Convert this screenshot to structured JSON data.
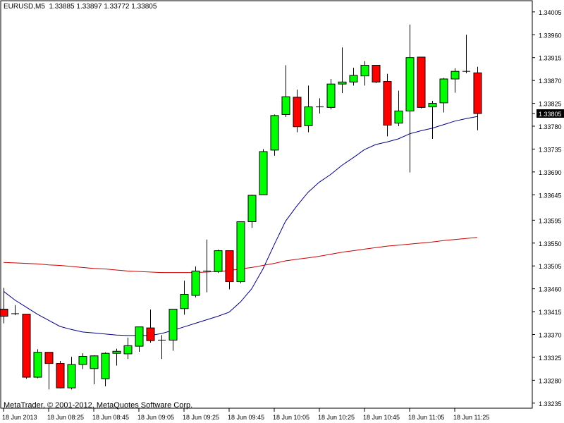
{
  "header": {
    "symbol": "EURUSD,M5",
    "open": "1.33885",
    "high": "1.33897",
    "low": "1.33772",
    "close": "1.33805"
  },
  "copyright": "MetaTrader, © 2001-2012, MetaQuotes Software Corp.",
  "colors": {
    "background": "#ffffff",
    "grid": "#000000",
    "bull": "#00ff00",
    "bear": "#ff0000",
    "wick": "#000000",
    "ma_fast": "#000080",
    "ma_slow": "#cc0000",
    "price_tag_bg": "#000000",
    "price_tag_fg": "#ffffff"
  },
  "chart_data": {
    "type": "candlestick",
    "title": "EURUSD,M5",
    "grid": false,
    "ylim": [
      1.33225,
      1.34027
    ],
    "y_ticks": [
      "1.34005",
      "1.33960",
      "1.33915",
      "1.33870",
      "1.33825",
      "1.33780",
      "1.33735",
      "1.33690",
      "1.33645",
      "1.33595",
      "1.33550",
      "1.33505",
      "1.33460",
      "1.33415",
      "1.33370",
      "1.33325",
      "1.33280",
      "1.33235"
    ],
    "current_price": "1.33805",
    "x_ticks": [
      {
        "label": "18 Jun 2013",
        "index": 0
      },
      {
        "label": "18 Jun 08:25",
        "index": 4
      },
      {
        "label": "18 Jun 08:45",
        "index": 8
      },
      {
        "label": "18 Jun 09:05",
        "index": 12
      },
      {
        "label": "18 Jun 09:25",
        "index": 16
      },
      {
        "label": "18 Jun 09:45",
        "index": 20
      },
      {
        "label": "18 Jun 10:05",
        "index": 24
      },
      {
        "label": "18 Jun 10:25",
        "index": 28
      },
      {
        "label": "18 Jun 10:45",
        "index": 32
      },
      {
        "label": "18 Jun 11:05",
        "index": 36
      },
      {
        "label": "18 Jun 11:25",
        "index": 40
      }
    ],
    "candles": [
      {
        "o": 1.3342,
        "h": 1.33462,
        "l": 1.33392,
        "c": 1.33406
      },
      {
        "o": 1.33411,
        "h": 1.33428,
        "l": 1.33408,
        "c": 1.3341
      },
      {
        "o": 1.3341,
        "h": 1.3341,
        "l": 1.33283,
        "c": 1.33286
      },
      {
        "o": 1.33286,
        "h": 1.33341,
        "l": 1.33284,
        "c": 1.33335
      },
      {
        "o": 1.33335,
        "h": 1.33335,
        "l": 1.33262,
        "c": 1.33313
      },
      {
        "o": 1.33313,
        "h": 1.33318,
        "l": 1.33264,
        "c": 1.33265
      },
      {
        "o": 1.33265,
        "h": 1.33326,
        "l": 1.33262,
        "c": 1.33311
      },
      {
        "o": 1.33311,
        "h": 1.33333,
        "l": 1.33302,
        "c": 1.33327
      },
      {
        "o": 1.33303,
        "h": 1.33329,
        "l": 1.33272,
        "c": 1.33328
      },
      {
        "o": 1.33283,
        "h": 1.33335,
        "l": 1.33268,
        "c": 1.33333
      },
      {
        "o": 1.33333,
        "h": 1.33342,
        "l": 1.33309,
        "c": 1.33337
      },
      {
        "o": 1.33332,
        "h": 1.33364,
        "l": 1.33322,
        "c": 1.33348
      },
      {
        "o": 1.33347,
        "h": 1.33385,
        "l": 1.33336,
        "c": 1.33385
      },
      {
        "o": 1.33383,
        "h": 1.33419,
        "l": 1.33354,
        "c": 1.33358
      },
      {
        "o": 1.33359,
        "h": 1.33369,
        "l": 1.33322,
        "c": 1.33358
      },
      {
        "o": 1.33359,
        "h": 1.3342,
        "l": 1.33338,
        "c": 1.3342
      },
      {
        "o": 1.33421,
        "h": 1.33476,
        "l": 1.33409,
        "c": 1.33449
      },
      {
        "o": 1.33447,
        "h": 1.33504,
        "l": 1.33443,
        "c": 1.33495
      },
      {
        "o": 1.33495,
        "h": 1.33557,
        "l": 1.33453,
        "c": 1.33494
      },
      {
        "o": 1.33494,
        "h": 1.33537,
        "l": 1.33491,
        "c": 1.33535
      },
      {
        "o": 1.33535,
        "h": 1.33535,
        "l": 1.33459,
        "c": 1.33474
      },
      {
        "o": 1.33474,
        "h": 1.33592,
        "l": 1.33471,
        "c": 1.33592
      },
      {
        "o": 1.33592,
        "h": 1.33645,
        "l": 1.3358,
        "c": 1.33644
      },
      {
        "o": 1.33645,
        "h": 1.33735,
        "l": 1.33645,
        "c": 1.3373
      },
      {
        "o": 1.33733,
        "h": 1.33803,
        "l": 1.33722,
        "c": 1.33801
      },
      {
        "o": 1.33803,
        "h": 1.339,
        "l": 1.33798,
        "c": 1.33838
      },
      {
        "o": 1.33837,
        "h": 1.33852,
        "l": 1.33768,
        "c": 1.33779
      },
      {
        "o": 1.33781,
        "h": 1.3386,
        "l": 1.33768,
        "c": 1.33818
      },
      {
        "o": 1.33817,
        "h": 1.33835,
        "l": 1.33805,
        "c": 1.33818
      },
      {
        "o": 1.33817,
        "h": 1.33873,
        "l": 1.33813,
        "c": 1.33863
      },
      {
        "o": 1.33863,
        "h": 1.33935,
        "l": 1.33845,
        "c": 1.33867
      },
      {
        "o": 1.33867,
        "h": 1.33895,
        "l": 1.3386,
        "c": 1.3388
      },
      {
        "o": 1.33879,
        "h": 1.33908,
        "l": 1.3386,
        "c": 1.339
      },
      {
        "o": 1.339,
        "h": 1.339,
        "l": 1.33865,
        "c": 1.33867
      },
      {
        "o": 1.33868,
        "h": 1.33883,
        "l": 1.3376,
        "c": 1.33782
      },
      {
        "o": 1.33786,
        "h": 1.3385,
        "l": 1.3378,
        "c": 1.3381
      },
      {
        "o": 1.3381,
        "h": 1.3398,
        "l": 1.33689,
        "c": 1.33915
      },
      {
        "o": 1.33916,
        "h": 1.33916,
        "l": 1.33815,
        "c": 1.33817
      },
      {
        "o": 1.33818,
        "h": 1.3383,
        "l": 1.33755,
        "c": 1.33825
      },
      {
        "o": 1.33826,
        "h": 1.33875,
        "l": 1.33807,
        "c": 1.33873
      },
      {
        "o": 1.33873,
        "h": 1.33894,
        "l": 1.33846,
        "c": 1.33888
      },
      {
        "o": 1.33888,
        "h": 1.3396,
        "l": 1.33884,
        "c": 1.33887
      },
      {
        "o": 1.33885,
        "h": 1.33897,
        "l": 1.33772,
        "c": 1.33805
      }
    ],
    "series": [
      {
        "values": [
          1.33455,
          1.33438,
          1.33424,
          1.3341,
          1.33398,
          1.33386,
          1.3338,
          1.33375,
          1.33373,
          1.33371,
          1.33369,
          1.33368,
          1.33368,
          1.33368,
          1.33372,
          1.33378,
          1.33385,
          1.33392,
          1.33399,
          1.33406,
          1.33414,
          1.33434,
          1.3346,
          1.33499,
          1.33547,
          1.33593,
          1.33623,
          1.3365,
          1.3367,
          1.33685,
          1.33703,
          1.33718,
          1.33734,
          1.33744,
          1.33749,
          1.33755,
          1.33765,
          1.33771,
          1.33776,
          1.33783,
          1.3379,
          1.33795,
          1.33799
        ]
      },
      {
        "values": [
          1.33512,
          1.33511,
          1.3351,
          1.33509,
          1.33507,
          1.33506,
          1.33504,
          1.33502,
          1.335,
          1.33499,
          1.33497,
          1.33495,
          1.33494,
          1.33493,
          1.33492,
          1.33492,
          1.33492,
          1.33492,
          1.33493,
          1.33494,
          1.33496,
          1.33499,
          1.33502,
          1.33506,
          1.3351,
          1.33515,
          1.33518,
          1.33521,
          1.33524,
          1.33528,
          1.33532,
          1.33535,
          1.33538,
          1.33541,
          1.33544,
          1.33546,
          1.33548,
          1.3355,
          1.33552,
          1.33555,
          1.33557,
          1.33559,
          1.33561
        ]
      }
    ]
  }
}
